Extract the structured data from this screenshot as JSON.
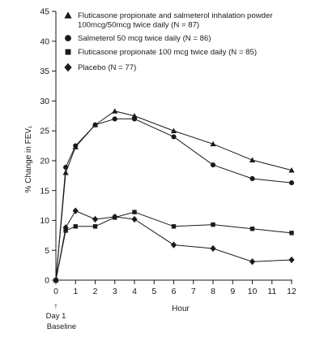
{
  "chart_data": {
    "type": "line",
    "title": "",
    "xlabel": "Hour",
    "ylabel": "% Change in FEV₁",
    "x_ticks": [
      0,
      1,
      2,
      3,
      4,
      5,
      6,
      7,
      8,
      9,
      10,
      11,
      12
    ],
    "y_ticks": [
      0,
      5,
      10,
      15,
      20,
      25,
      30,
      35,
      40,
      45
    ],
    "xlim": [
      0,
      12
    ],
    "ylim": [
      0,
      45
    ],
    "grid": false,
    "legend_position": "top-left",
    "baseline_annotation": {
      "line1": "Day 1",
      "line2": "Baseline",
      "arrow": "↑"
    },
    "series": [
      {
        "name_line1": "Fluticasone propionate and salmeterol inhalation powder",
        "name_line2": "100mcg/50mcg twice daily (N = 87)",
        "marker": "triangle",
        "x": [
          0,
          0.5,
          1,
          2,
          3,
          4,
          6,
          8,
          10,
          12
        ],
        "values": [
          0,
          18.0,
          22.3,
          26.0,
          28.3,
          27.5,
          25.0,
          22.8,
          20.1,
          18.4
        ]
      },
      {
        "name_line1": "Salmeterol 50 mcg twice daily (N = 86)",
        "marker": "circle",
        "x": [
          0,
          0.5,
          1,
          2,
          3,
          4,
          6,
          8,
          10,
          12
        ],
        "values": [
          0,
          18.9,
          22.5,
          26.0,
          27.0,
          27.0,
          24.0,
          19.3,
          17.0,
          16.3
        ]
      },
      {
        "name_line1": "Fluticasone propionate 100 mcg twice daily (N = 85)",
        "marker": "square",
        "x": [
          0,
          0.5,
          1,
          2,
          3,
          4,
          6,
          8,
          10,
          12
        ],
        "values": [
          0,
          8.3,
          9.0,
          9.0,
          10.5,
          11.4,
          9.0,
          9.3,
          8.6,
          7.9
        ]
      },
      {
        "name_line1": "Placebo (N = 77)",
        "marker": "diamond",
        "x": [
          0,
          0.5,
          1,
          2,
          3,
          4,
          6,
          8,
          10,
          12
        ],
        "values": [
          0,
          8.8,
          11.6,
          10.2,
          10.6,
          10.2,
          5.9,
          5.3,
          3.1,
          3.4
        ]
      }
    ]
  },
  "colors": {
    "ink": "#1a1a1a",
    "background": "#ffffff"
  }
}
